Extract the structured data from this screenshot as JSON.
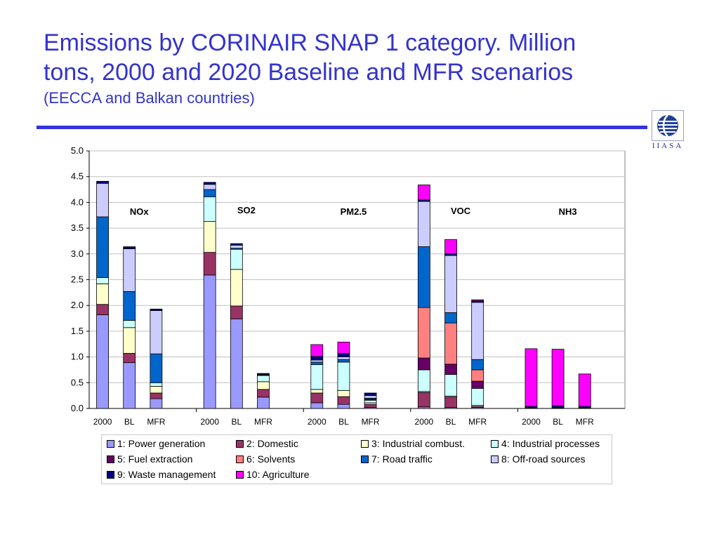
{
  "title": {
    "line1": "Emissions by CORINAIR SNAP 1 category. Million",
    "line2": "tons, 2000 and 2020 Baseline and MFR scenarios",
    "subtitle": "(EECCA and Balkan countries)"
  },
  "logo": {
    "text": "IIASA",
    "icon": "iiasa-globe-logo"
  },
  "colors": {
    "title": "#3333cc",
    "rule": "#3333dd"
  },
  "chart_data": {
    "type": "bar",
    "stacked": true,
    "ylim": [
      0,
      5
    ],
    "yticks": [
      "0.0",
      "0.5",
      "1.0",
      "1.5",
      "2.0",
      "2.5",
      "3.0",
      "3.5",
      "4.0",
      "4.5",
      "5.0"
    ],
    "grid": true,
    "legend_position": "bottom",
    "groups": [
      {
        "label": "NOx",
        "bars": [
          {
            "x": "2000",
            "values": [
              1.82,
              0.2,
              0.4,
              0.12,
              0,
              0,
              1.18,
              0.65,
              0.04,
              0
            ]
          },
          {
            "x": "BL",
            "values": [
              0.89,
              0.18,
              0.5,
              0.14,
              0,
              0,
              0.56,
              0.83,
              0.04,
              0
            ]
          },
          {
            "x": "MFR",
            "values": [
              0.19,
              0.11,
              0.13,
              0.07,
              0,
              0,
              0.56,
              0.84,
              0.03,
              0
            ]
          }
        ]
      },
      {
        "label": "SO2",
        "bars": [
          {
            "x": "2000",
            "values": [
              2.59,
              0.44,
              0.6,
              0.48,
              0,
              0,
              0.14,
              0.1,
              0.04,
              0
            ]
          },
          {
            "x": "BL",
            "values": [
              1.74,
              0.25,
              0.71,
              0.39,
              0,
              0,
              0.02,
              0.06,
              0.03,
              0
            ]
          },
          {
            "x": "MFR",
            "values": [
              0.22,
              0.15,
              0.15,
              0.12,
              0,
              0,
              0.01,
              0.01,
              0.02,
              0
            ]
          }
        ]
      },
      {
        "label": "PM2.5",
        "bars": [
          {
            "x": "2000",
            "values": [
              0.11,
              0.19,
              0.07,
              0.48,
              0,
              0,
              0.05,
              0.04,
              0.07,
              0.23
            ]
          },
          {
            "x": "BL",
            "values": [
              0.08,
              0.15,
              0.12,
              0.55,
              0,
              0,
              0.05,
              0.05,
              0.07,
              0.22
            ]
          },
          {
            "x": "MFR",
            "values": [
              0.02,
              0.06,
              0.03,
              0.05,
              0.02,
              0,
              0.02,
              0.05,
              0.05,
              0
            ]
          }
        ]
      },
      {
        "label": "VOC",
        "bars": [
          {
            "x": "2000",
            "values": [
              0.03,
              0.28,
              0.02,
              0.42,
              0.23,
              0.98,
              1.18,
              0.88,
              0.03,
              0.29
            ]
          },
          {
            "x": "BL",
            "values": [
              0.02,
              0.2,
              0.02,
              0.42,
              0.2,
              0.8,
              0.2,
              1.11,
              0.03,
              0.28
            ]
          },
          {
            "x": "MFR",
            "values": [
              0.02,
              0.02,
              0.02,
              0.33,
              0.14,
              0.22,
              0.2,
              1.11,
              0.03,
              0.02
            ]
          }
        ]
      },
      {
        "label": "NH3",
        "bars": [
          {
            "x": "2000",
            "values": [
              0,
              0.01,
              0,
              0,
              0,
              0,
              0,
              0,
              0.03,
              1.12
            ]
          },
          {
            "x": "BL",
            "values": [
              0,
              0.01,
              0,
              0,
              0,
              0,
              0,
              0,
              0.04,
              1.1
            ]
          },
          {
            "x": "MFR",
            "values": [
              0,
              0.01,
              0,
              0,
              0,
              0,
              0,
              0,
              0.03,
              0.63
            ]
          }
        ]
      }
    ],
    "series": [
      {
        "name": "1: Power generation",
        "color": "#9999ff"
      },
      {
        "name": "2: Domestic",
        "color": "#993366"
      },
      {
        "name": "3: Industrial combust.",
        "color": "#ffffcc"
      },
      {
        "name": "4: Industrial processes",
        "color": "#ccffff"
      },
      {
        "name": "5: Fuel extraction",
        "color": "#660066"
      },
      {
        "name": "6: Solvents",
        "color": "#ff8080"
      },
      {
        "name": "7: Road traffic",
        "color": "#0066cc"
      },
      {
        "name": "8: Off-road sources",
        "color": "#ccccff"
      },
      {
        "name": "9: Waste management",
        "color": "#000080"
      },
      {
        "name": "10: Agriculture",
        "color": "#ff00ff"
      }
    ]
  }
}
